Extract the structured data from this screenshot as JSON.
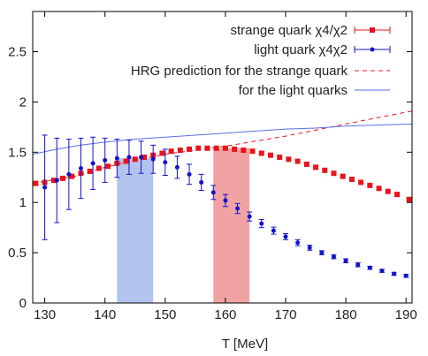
{
  "chart_data": {
    "type": "scatter",
    "xlabel": "T [MeV]",
    "ylabel": "",
    "xlim": [
      128,
      191
    ],
    "ylim": [
      0,
      2.9
    ],
    "x_ticks": [
      130,
      140,
      150,
      160,
      170,
      180,
      190
    ],
    "y_ticks": [
      0,
      0.5,
      1,
      1.5,
      2,
      2.5
    ],
    "x_tick_labels": [
      "130",
      "140",
      "150",
      "160",
      "170",
      "180",
      "190"
    ],
    "y_tick_labels": [
      "0",
      "0.5",
      "1",
      "1.5",
      "2",
      "2.5"
    ],
    "grid": false,
    "legend_position": "top-right",
    "bands": [
      {
        "x_range": [
          142,
          148
        ],
        "y_range": [
          0,
          1.44
        ],
        "color": "#b3c3ef"
      },
      {
        "x_range": [
          158,
          164
        ],
        "y_range": [
          0,
          1.54
        ],
        "color": "#f1a2a2"
      }
    ],
    "series": [
      {
        "name": "strange quark χ4/χ2",
        "kind": "points",
        "marker": "square",
        "color": "#e8141b",
        "x": [
          128.5,
          130,
          131.5,
          133,
          134.5,
          136,
          137.5,
          139,
          140.5,
          142,
          143.5,
          145,
          146.5,
          148,
          149.5,
          151,
          152.5,
          154,
          155.5,
          157,
          158.5,
          160,
          161.5,
          163,
          164.5,
          166,
          167.5,
          169,
          170.5,
          172,
          173.5,
          175,
          176.5,
          178,
          179.5,
          181,
          182.5,
          184,
          185.5,
          187,
          188.5,
          190.5
        ],
        "y": [
          1.19,
          1.2,
          1.22,
          1.24,
          1.26,
          1.29,
          1.31,
          1.34,
          1.36,
          1.39,
          1.41,
          1.43,
          1.45,
          1.47,
          1.49,
          1.51,
          1.52,
          1.53,
          1.54,
          1.54,
          1.54,
          1.54,
          1.53,
          1.52,
          1.51,
          1.49,
          1.47,
          1.45,
          1.43,
          1.41,
          1.38,
          1.35,
          1.32,
          1.29,
          1.26,
          1.23,
          1.2,
          1.17,
          1.14,
          1.11,
          1.08,
          1.03
        ]
      },
      {
        "name": "light quark χ4χ2",
        "kind": "errorbars",
        "marker": "circle",
        "color": "#1212cc",
        "x": [
          130,
          132,
          134,
          136,
          138,
          140,
          142,
          144,
          146,
          148,
          150,
          152,
          154,
          156,
          158,
          160,
          162,
          164,
          166,
          168,
          170,
          172,
          174,
          176,
          178,
          180,
          182,
          184,
          186,
          188,
          190
        ],
        "y": [
          1.15,
          1.22,
          1.28,
          1.34,
          1.39,
          1.42,
          1.44,
          1.45,
          1.45,
          1.43,
          1.4,
          1.35,
          1.28,
          1.2,
          1.1,
          1.02,
          0.94,
          0.86,
          0.79,
          0.72,
          0.66,
          0.6,
          0.55,
          0.5,
          0.46,
          0.42,
          0.38,
          0.35,
          0.32,
          0.29,
          0.27
        ],
        "err": [
          0.52,
          0.42,
          0.35,
          0.3,
          0.26,
          0.22,
          0.19,
          0.17,
          0.16,
          0.14,
          0.13,
          0.11,
          0.1,
          0.08,
          0.07,
          0.06,
          0.05,
          0.045,
          0.04,
          0.035,
          0.03,
          0.03,
          0.025,
          0.02,
          0.02,
          0.02,
          0.02,
          0.015,
          0.015,
          0.015,
          0.015
        ]
      },
      {
        "name": "HRG prediction for the strange quark",
        "kind": "line",
        "dash": true,
        "color": "#e8141b",
        "x": [
          128,
          135,
          140,
          145,
          150,
          155,
          160,
          165,
          170,
          175,
          180,
          185,
          191
        ],
        "y": [
          1.19,
          1.26,
          1.35,
          1.42,
          1.48,
          1.52,
          1.56,
          1.61,
          1.66,
          1.72,
          1.78,
          1.84,
          1.91
        ]
      },
      {
        "name": "for the light quarks",
        "kind": "line",
        "dash": false,
        "color": "#5a6ee6",
        "x": [
          128,
          132,
          136,
          140,
          145,
          150,
          155,
          160,
          165,
          170,
          175,
          180,
          185,
          191
        ],
        "y": [
          1.48,
          1.53,
          1.57,
          1.6,
          1.63,
          1.65,
          1.67,
          1.69,
          1.71,
          1.73,
          1.74,
          1.76,
          1.77,
          1.78
        ]
      }
    ]
  }
}
